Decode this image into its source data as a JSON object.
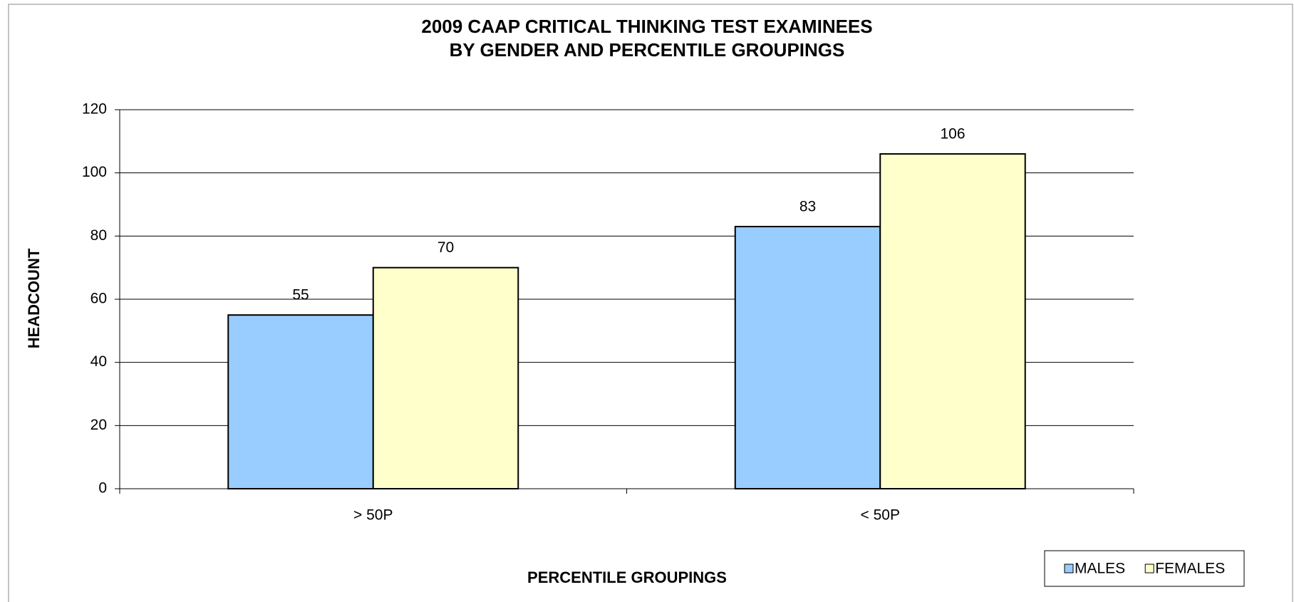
{
  "chart_data": {
    "type": "bar",
    "title": [
      "2009 CAAP CRITICAL THINKING TEST EXAMINEES",
      "BY GENDER AND PERCENTILE GROUPINGS"
    ],
    "x_label": "PERCENTILE GROUPINGS",
    "y_label": "HEADCOUNT",
    "categories": [
      "> 50P",
      "< 50P"
    ],
    "series": [
      {
        "name": "MALES",
        "color": "#99ccff",
        "values": [
          55,
          83
        ]
      },
      {
        "name": "FEMALES",
        "color": "#ffffcc",
        "values": [
          70,
          106
        ]
      }
    ],
    "ylim": [
      0,
      120
    ],
    "yticks": [
      0,
      20,
      40,
      60,
      80,
      100,
      120
    ],
    "grid": true,
    "legend": "bottom-right"
  }
}
